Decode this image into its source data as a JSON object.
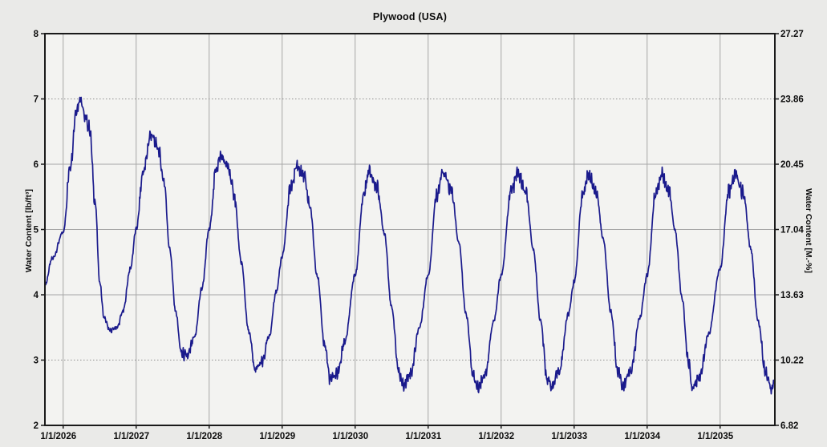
{
  "chart_data": {
    "type": "line",
    "title": "Plywood (USA)",
    "ylabel_left": "Water Content [lb/ft³]",
    "ylabel_right": "Water Content [M.-%]",
    "x_range": [
      2025.75,
      2035.75
    ],
    "x_tick_positions": [
      2026,
      2027,
      2028,
      2029,
      2030,
      2031,
      2032,
      2033,
      2034,
      2035
    ],
    "x_tick_labels": [
      "1/1/2026",
      "1/1/2027",
      "1/1/2028",
      "1/1/2029",
      "1/1/2030",
      "1/1/2031",
      "1/1/2032",
      "1/1/2033",
      "1/1/2034",
      "1/1/2035"
    ],
    "left_ylim": [
      2,
      8
    ],
    "left_yticks": [
      2,
      3,
      4,
      5,
      6,
      7,
      8
    ],
    "right_ytick_labels": [
      "6.82",
      "10.22",
      "13.63",
      "17.04",
      "20.45",
      "23.86",
      "27.27"
    ],
    "grid": true,
    "legend": false,
    "series": [
      {
        "name": "Water Content",
        "color": "#1a1a8c",
        "points": [
          [
            2025.75,
            4.15
          ],
          [
            2025.85,
            4.55
          ],
          [
            2026.0,
            4.95
          ],
          [
            2026.1,
            6.0
          ],
          [
            2026.18,
            6.85
          ],
          [
            2026.24,
            7.02
          ],
          [
            2026.3,
            6.7
          ],
          [
            2026.36,
            6.55
          ],
          [
            2026.44,
            5.4
          ],
          [
            2026.5,
            4.2
          ],
          [
            2026.56,
            3.65
          ],
          [
            2026.64,
            3.45
          ],
          [
            2026.74,
            3.5
          ],
          [
            2026.82,
            3.75
          ],
          [
            2026.92,
            4.4
          ],
          [
            2027.0,
            5.0
          ],
          [
            2027.1,
            5.9
          ],
          [
            2027.2,
            6.45
          ],
          [
            2027.3,
            6.25
          ],
          [
            2027.38,
            5.75
          ],
          [
            2027.46,
            4.7
          ],
          [
            2027.54,
            3.75
          ],
          [
            2027.62,
            3.1
          ],
          [
            2027.7,
            3.05
          ],
          [
            2027.8,
            3.35
          ],
          [
            2027.9,
            4.1
          ],
          [
            2028.0,
            5.0
          ],
          [
            2028.1,
            5.95
          ],
          [
            2028.16,
            6.12
          ],
          [
            2028.26,
            5.95
          ],
          [
            2028.34,
            5.55
          ],
          [
            2028.44,
            4.5
          ],
          [
            2028.54,
            3.45
          ],
          [
            2028.63,
            2.85
          ],
          [
            2028.72,
            2.95
          ],
          [
            2028.82,
            3.35
          ],
          [
            2028.92,
            4.05
          ],
          [
            2029.0,
            4.6
          ],
          [
            2029.12,
            5.65
          ],
          [
            2029.2,
            5.98
          ],
          [
            2029.3,
            5.8
          ],
          [
            2029.38,
            5.35
          ],
          [
            2029.48,
            4.3
          ],
          [
            2029.58,
            3.25
          ],
          [
            2029.66,
            2.7
          ],
          [
            2029.76,
            2.8
          ],
          [
            2029.86,
            3.3
          ],
          [
            2030.0,
            4.3
          ],
          [
            2030.12,
            5.55
          ],
          [
            2030.19,
            5.88
          ],
          [
            2030.3,
            5.65
          ],
          [
            2030.4,
            4.95
          ],
          [
            2030.5,
            3.8
          ],
          [
            2030.6,
            2.8
          ],
          [
            2030.66,
            2.62
          ],
          [
            2030.76,
            2.8
          ],
          [
            2030.88,
            3.5
          ],
          [
            2031.0,
            4.3
          ],
          [
            2031.12,
            5.55
          ],
          [
            2031.2,
            5.86
          ],
          [
            2031.32,
            5.6
          ],
          [
            2031.42,
            4.8
          ],
          [
            2031.52,
            3.7
          ],
          [
            2031.62,
            2.75
          ],
          [
            2031.68,
            2.58
          ],
          [
            2031.78,
            2.8
          ],
          [
            2031.9,
            3.6
          ],
          [
            2032.0,
            4.3
          ],
          [
            2032.14,
            5.6
          ],
          [
            2032.23,
            5.86
          ],
          [
            2032.34,
            5.55
          ],
          [
            2032.44,
            4.7
          ],
          [
            2032.54,
            3.6
          ],
          [
            2032.63,
            2.72
          ],
          [
            2032.7,
            2.6
          ],
          [
            2032.8,
            2.85
          ],
          [
            2032.92,
            3.7
          ],
          [
            2033.0,
            4.2
          ],
          [
            2033.12,
            5.55
          ],
          [
            2033.19,
            5.84
          ],
          [
            2033.3,
            5.6
          ],
          [
            2033.4,
            4.85
          ],
          [
            2033.5,
            3.75
          ],
          [
            2033.6,
            2.85
          ],
          [
            2033.67,
            2.6
          ],
          [
            2033.78,
            2.85
          ],
          [
            2033.9,
            3.65
          ],
          [
            2034.0,
            4.3
          ],
          [
            2034.12,
            5.55
          ],
          [
            2034.2,
            5.83
          ],
          [
            2034.3,
            5.6
          ],
          [
            2034.38,
            5.0
          ],
          [
            2034.48,
            3.95
          ],
          [
            2034.56,
            3.0
          ],
          [
            2034.62,
            2.58
          ],
          [
            2034.72,
            2.75
          ],
          [
            2034.84,
            3.4
          ],
          [
            2035.0,
            4.4
          ],
          [
            2035.12,
            5.6
          ],
          [
            2035.21,
            5.83
          ],
          [
            2035.32,
            5.55
          ],
          [
            2035.42,
            4.7
          ],
          [
            2035.52,
            3.6
          ],
          [
            2035.62,
            2.85
          ],
          [
            2035.7,
            2.58
          ],
          [
            2035.75,
            2.65
          ]
        ]
      }
    ]
  },
  "styles": {
    "outer_bg": "#eaeae8",
    "plot_bg": "#f3f3f1",
    "grid_color": "#a6a6a6",
    "grid_dotted_color": "#8f8f8f",
    "axis_color": "#1a1a1a",
    "text_color": "#0d0d0d",
    "line_color": "#1a1a8c"
  }
}
